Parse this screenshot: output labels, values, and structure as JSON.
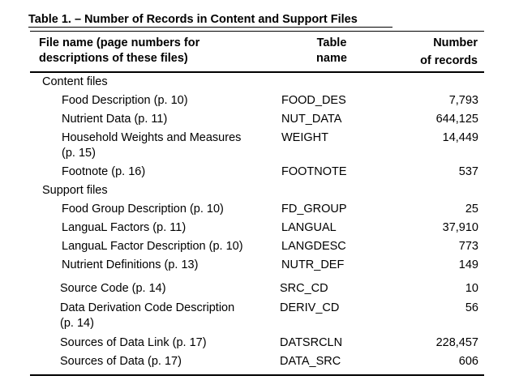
{
  "title": "Table 1.  – Number of Records in Content and Support Files",
  "headers": {
    "file_line1": "File name (page numbers for",
    "file_line2": "descriptions of these files)",
    "table_line1": "Table",
    "table_line2": "name",
    "number_line1": "Number",
    "number_line2": "of records"
  },
  "sections": {
    "content": "Content files",
    "support": "Support files"
  },
  "rows": [
    {
      "name": "Food Description (p. 10)",
      "table": "FOOD_DES",
      "records": "7,793"
    },
    {
      "name": "Nutrient Data (p. 11)",
      "table": "NUT_DATA",
      "records": "644,125"
    },
    {
      "name": "Household Weights and Measures",
      "name2": "(p. 15)",
      "table": "WEIGHT",
      "records": "14,449"
    },
    {
      "name": "Footnote (p. 16)",
      "table": "FOOTNOTE",
      "records": "537"
    },
    {
      "name": "Food Group Description (p. 10)",
      "table": "FD_GROUP",
      "records": "25"
    },
    {
      "name": "LanguaL Factors (p. 11)",
      "table": "LANGUAL",
      "records": "37,910"
    },
    {
      "name": "LanguaL Factor Description (p. 10)",
      "table": "LANGDESC",
      "records": "773"
    },
    {
      "name": "Nutrient Definitions (p. 13)",
      "table": "NUTR_DEF",
      "records": "149"
    },
    {
      "name": "Source Code (p. 14)",
      "table": "SRC_CD",
      "records": "10"
    },
    {
      "name": "Data Derivation Code Description",
      "name2": "(p. 14)",
      "table": "DERIV_CD",
      "records": "56"
    },
    {
      "name": "Sources of Data Link (p. 17)",
      "table": "DATSRCLN",
      "records": "228,457"
    },
    {
      "name": "Sources of Data (p. 17)",
      "table": "DATA_SRC",
      "records": "606"
    }
  ]
}
